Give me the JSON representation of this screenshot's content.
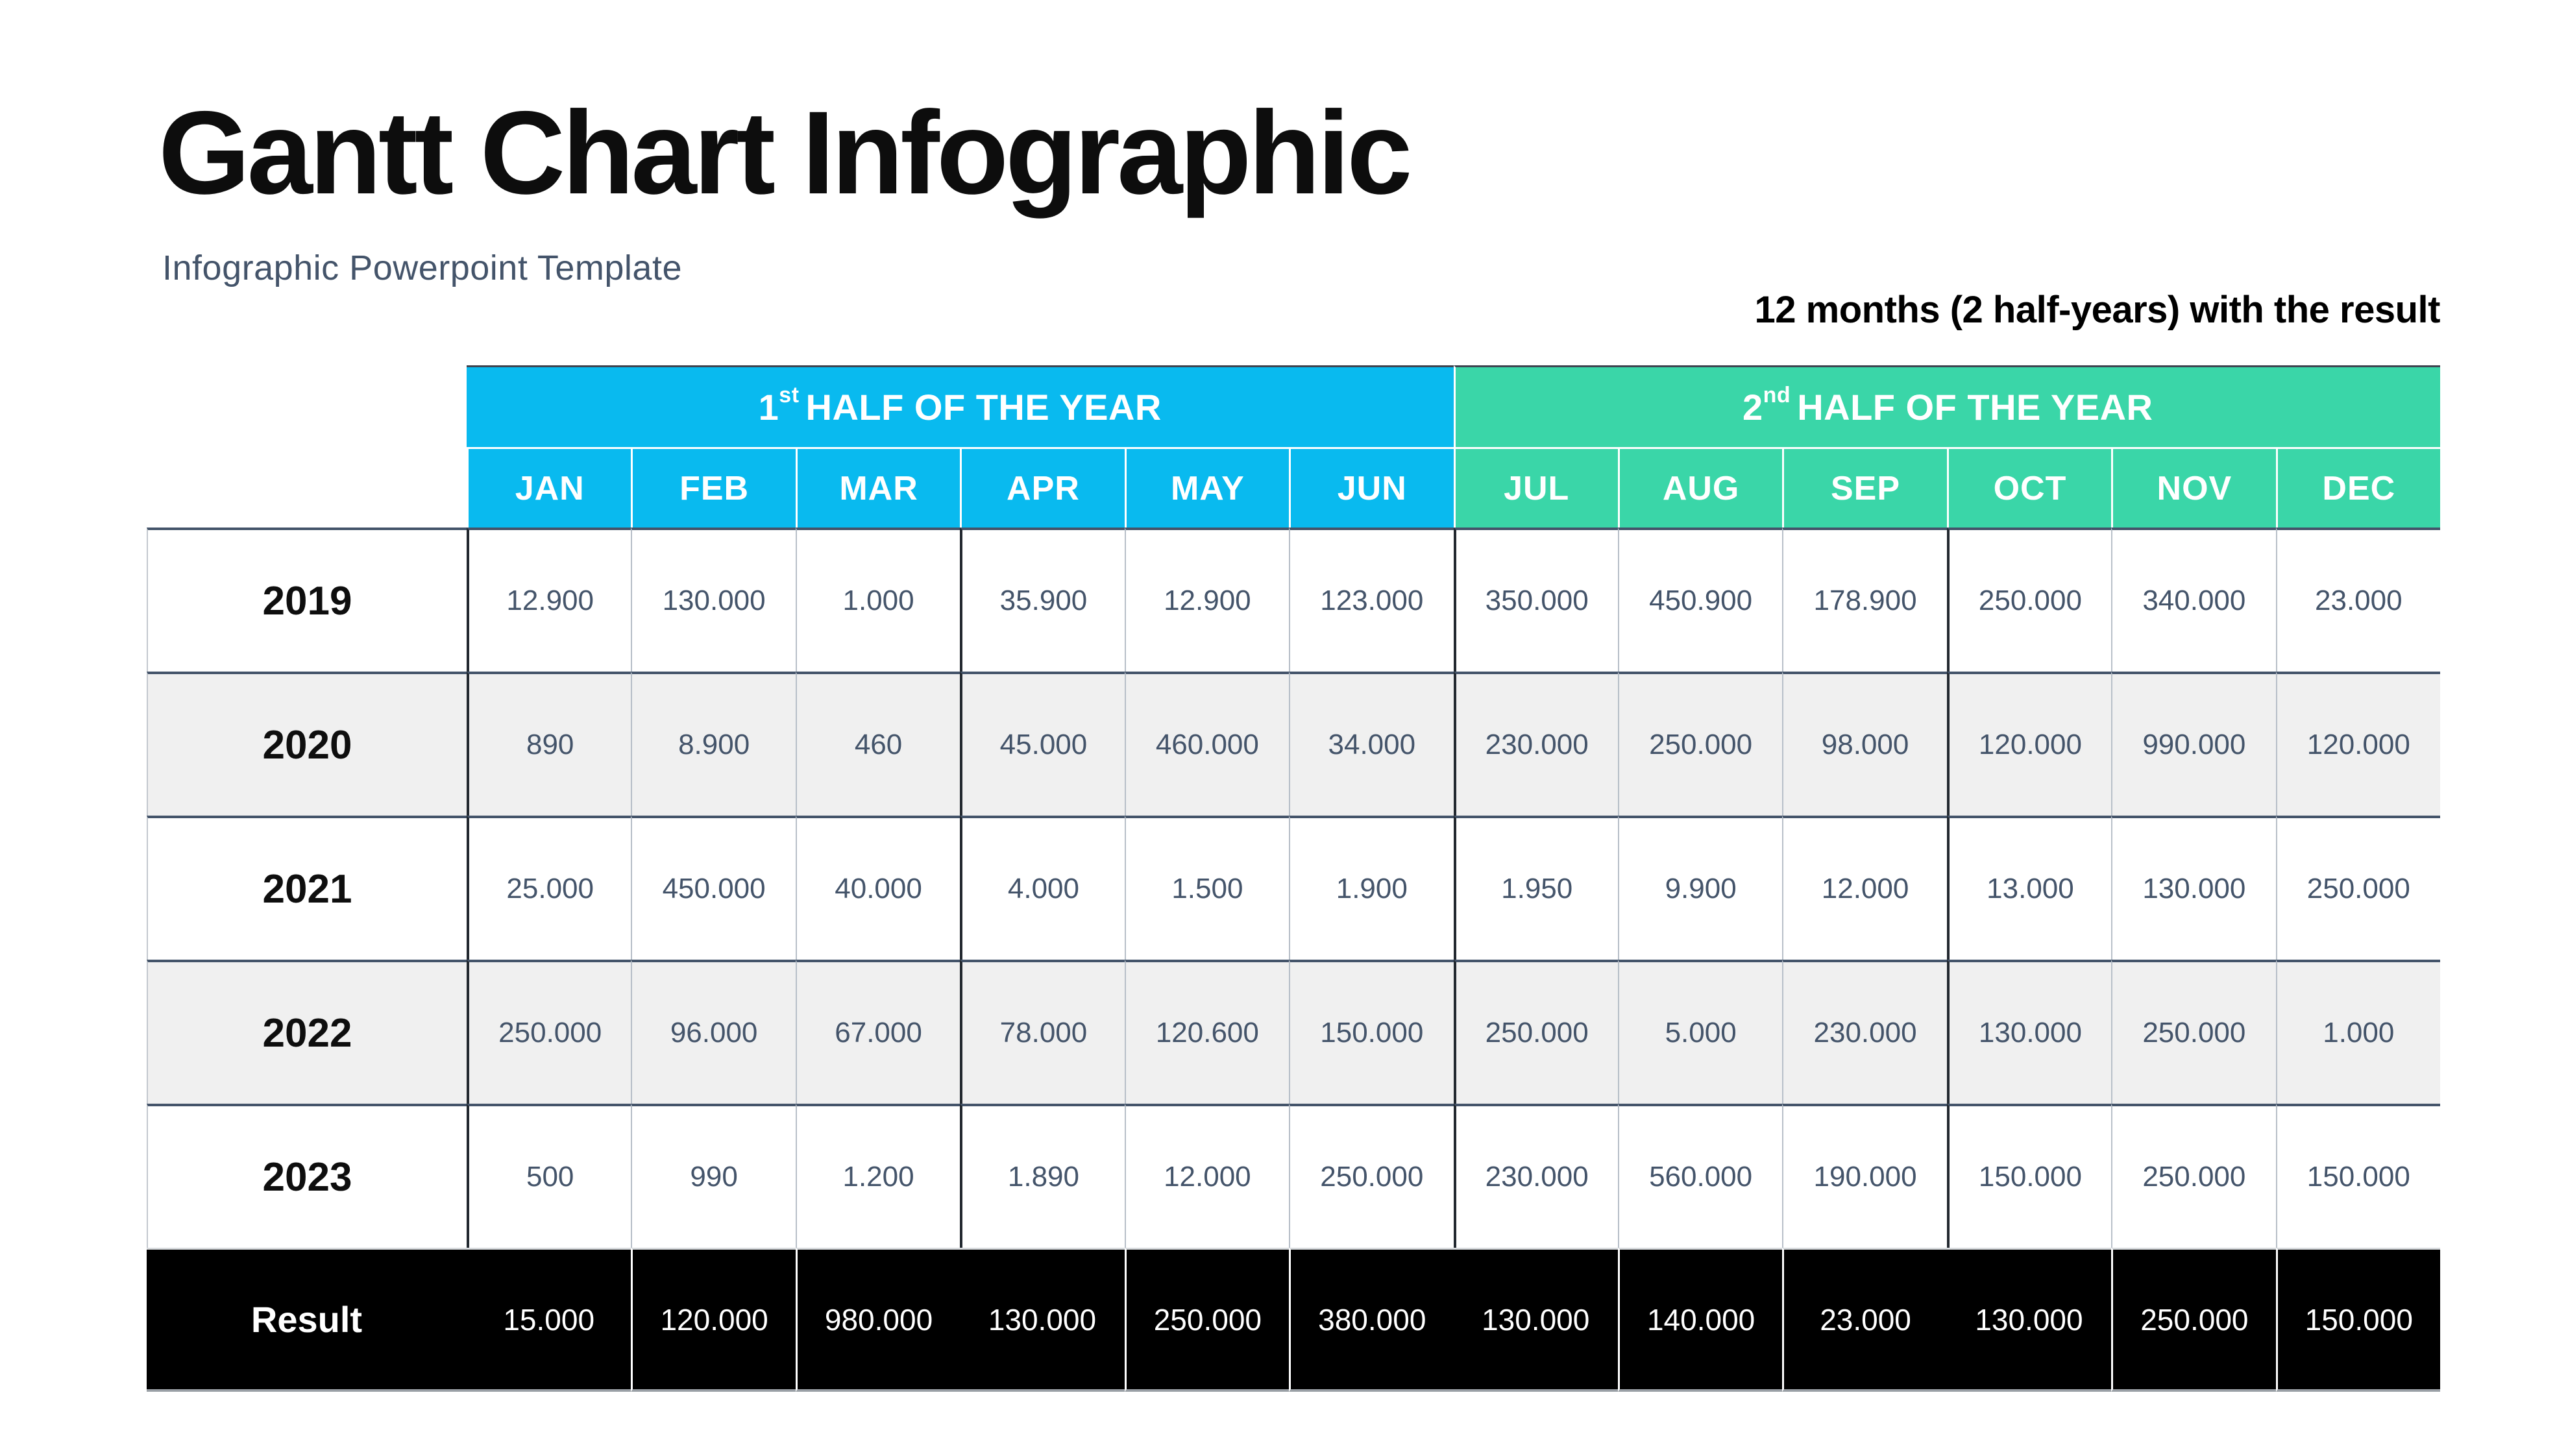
{
  "chart_data": {
    "type": "table",
    "title": "Gantt Chart Infographic",
    "subtitle": "Infographic Powerpoint Template",
    "caption": "12 months (2 half-years) with the result",
    "column_groups": [
      {
        "ordinal": "1",
        "suffix": "st",
        "label": "HALF OF THE YEAR"
      },
      {
        "ordinal": "2",
        "suffix": "nd",
        "label": "HALF OF THE YEAR"
      }
    ],
    "columns": [
      "JAN",
      "FEB",
      "MAR",
      "APR",
      "MAY",
      "JUN",
      "JUL",
      "AUG",
      "SEP",
      "OCT",
      "NOV",
      "DEC"
    ],
    "rows": [
      {
        "year": "2019",
        "values": [
          "12.900",
          "130.000",
          "1.000",
          "35.900",
          "12.900",
          "123.000",
          "350.000",
          "450.900",
          "178.900",
          "250.000",
          "340.000",
          "23.000"
        ]
      },
      {
        "year": "2020",
        "values": [
          "890",
          "8.900",
          "460",
          "45.000",
          "460.000",
          "34.000",
          "230.000",
          "250.000",
          "98.000",
          "120.000",
          "990.000",
          "120.000"
        ]
      },
      {
        "year": "2021",
        "values": [
          "25.000",
          "450.000",
          "40.000",
          "4.000",
          "1.500",
          "1.900",
          "1.950",
          "9.900",
          "12.000",
          "13.000",
          "130.000",
          "250.000"
        ]
      },
      {
        "year": "2022",
        "values": [
          "250.000",
          "96.000",
          "67.000",
          "78.000",
          "120.600",
          "150.000",
          "250.000",
          "5.000",
          "230.000",
          "130.000",
          "250.000",
          "1.000"
        ]
      },
      {
        "year": "2023",
        "values": [
          "500",
          "990",
          "1.200",
          "1.890",
          "12.000",
          "250.000",
          "230.000",
          "560.000",
          "190.000",
          "150.000",
          "250.000",
          "150.000"
        ]
      }
    ],
    "result": {
      "label": "Result",
      "values": [
        "15.000",
        "120.000",
        "980.000",
        "130.000",
        "250.000",
        "380.000",
        "130.000",
        "140.000",
        "23.000",
        "130.000",
        "250.000",
        "150.000"
      ]
    },
    "legend_position": "none",
    "grid": true
  },
  "colors": {
    "half1": "#09BAEF",
    "half2": "#3AD6A8",
    "result_bg": "#000000",
    "body_text": "#44546A",
    "alt_row": "#F0F0F0"
  }
}
